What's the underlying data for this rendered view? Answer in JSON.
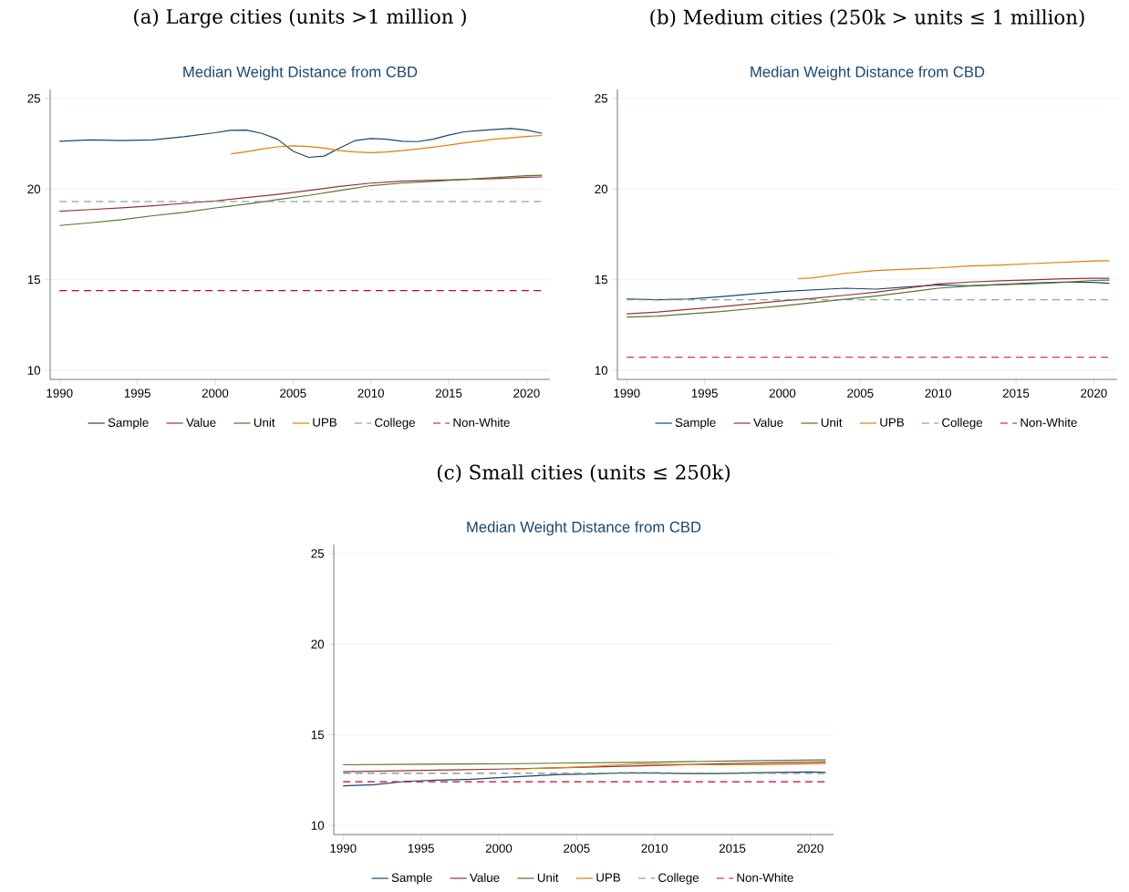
{
  "chart_data": [
    {
      "type": "line",
      "title": "(a) Large cities (units >1 million )",
      "subtitle": "Median Weight Distance from CBD",
      "xlim": [
        1989.4,
        2021.5
      ],
      "xticks": [
        1990,
        1995,
        2000,
        2005,
        2010,
        2015,
        2020
      ],
      "ylim": [
        9.5,
        25.5
      ],
      "yticks": [
        10,
        15,
        20,
        25
      ],
      "grid": "y",
      "legend": "bottom",
      "series": [
        {
          "name": "Sample",
          "color": "#1a476f",
          "x": [
            1990,
            1992,
            1994,
            1996,
            1998,
            2000,
            2001,
            2002,
            2003,
            2004,
            2005,
            2006,
            2007,
            2008,
            2009,
            2010,
            2011,
            2012,
            2013,
            2014,
            2015,
            2016,
            2017,
            2018,
            2019,
            2020,
            2021
          ],
          "values": [
            22.64,
            22.71,
            22.68,
            22.71,
            22.89,
            23.11,
            23.24,
            23.25,
            23.07,
            22.75,
            22.09,
            21.75,
            21.82,
            22.27,
            22.68,
            22.79,
            22.75,
            22.64,
            22.62,
            22.75,
            22.98,
            23.16,
            23.23,
            23.29,
            23.34,
            23.25,
            23.07
          ]
        },
        {
          "name": "Value",
          "color": "#90353b",
          "x": [
            1990,
            1992,
            1994,
            1996,
            1998,
            2000,
            2002,
            2004,
            2006,
            2008,
            2010,
            2012,
            2014,
            2016,
            2018,
            2020,
            2021
          ],
          "values": [
            18.78,
            18.87,
            18.97,
            19.08,
            19.21,
            19.35,
            19.53,
            19.71,
            19.92,
            20.15,
            20.33,
            20.44,
            20.49,
            20.53,
            20.58,
            20.65,
            20.67
          ]
        },
        {
          "name": "Unit",
          "color": "#55752f",
          "x": [
            1990,
            1992,
            1994,
            1996,
            1998,
            2000,
            2002,
            2004,
            2006,
            2008,
            2010,
            2012,
            2014,
            2016,
            2018,
            2020,
            2021
          ],
          "values": [
            17.99,
            18.14,
            18.31,
            18.53,
            18.71,
            18.96,
            19.17,
            19.42,
            19.65,
            19.92,
            20.19,
            20.33,
            20.42,
            20.53,
            20.64,
            20.74,
            20.76
          ]
        },
        {
          "name": "UPB",
          "color": "#e37e00",
          "x": [
            2001,
            2002,
            2003,
            2004,
            2005,
            2006,
            2007,
            2008,
            2009,
            2010,
            2011,
            2012,
            2013,
            2014,
            2015,
            2016,
            2017,
            2018,
            2019,
            2020,
            2021
          ],
          "values": [
            21.94,
            22.06,
            22.21,
            22.33,
            22.39,
            22.35,
            22.26,
            22.12,
            22.05,
            22.01,
            22.05,
            22.12,
            22.21,
            22.31,
            22.42,
            22.55,
            22.65,
            22.76,
            22.83,
            22.9,
            22.96
          ]
        },
        {
          "name": "College",
          "color": "#6e8e84",
          "line_style": "dashed",
          "x": [
            1990,
            2021
          ],
          "values": [
            19.31,
            19.31
          ]
        },
        {
          "name": "Non-White",
          "color": "#c10534",
          "line_style": "dashed",
          "x": [
            1990,
            2021
          ],
          "values": [
            14.4,
            14.4
          ]
        }
      ]
    },
    {
      "type": "line",
      "title": "(b) Medium cities (250k > units ≤ 1 million)",
      "subtitle": "Median Weight Distance from CBD",
      "xlim": [
        1989.4,
        2021.5
      ],
      "xticks": [
        1990,
        1995,
        2000,
        2005,
        2010,
        2015,
        2020
      ],
      "ylim": [
        9.5,
        25.5
      ],
      "yticks": [
        10,
        15,
        20,
        25
      ],
      "grid": "y",
      "legend": "bottom",
      "series": [
        {
          "name": "Sample",
          "color": "#1a476f",
          "x": [
            1990,
            1992,
            1994,
            1996,
            1998,
            2000,
            2002,
            2004,
            2006,
            2008,
            2010,
            2012,
            2014,
            2016,
            2018,
            2020,
            2021
          ],
          "values": [
            13.94,
            13.9,
            13.94,
            14.06,
            14.21,
            14.35,
            14.44,
            14.53,
            14.48,
            14.6,
            14.71,
            14.67,
            14.74,
            14.81,
            14.87,
            14.85,
            14.8
          ]
        },
        {
          "name": "Value",
          "color": "#90353b",
          "x": [
            1990,
            1992,
            1994,
            1996,
            1998,
            2000,
            2002,
            2004,
            2006,
            2008,
            2010,
            2012,
            2014,
            2016,
            2018,
            2020,
            2021
          ],
          "values": [
            13.12,
            13.22,
            13.37,
            13.51,
            13.67,
            13.83,
            13.97,
            14.14,
            14.31,
            14.53,
            14.76,
            14.87,
            14.94,
            14.99,
            15.05,
            15.08,
            15.08
          ]
        },
        {
          "name": "Unit",
          "color": "#55752f",
          "x": [
            1990,
            1992,
            1994,
            1996,
            1998,
            2000,
            2002,
            2004,
            2006,
            2008,
            2010,
            2012,
            2014,
            2016,
            2018,
            2020,
            2021
          ],
          "values": [
            12.94,
            12.99,
            13.12,
            13.24,
            13.4,
            13.56,
            13.74,
            13.92,
            14.1,
            14.31,
            14.53,
            14.65,
            14.72,
            14.78,
            14.85,
            14.96,
            14.98
          ]
        },
        {
          "name": "UPB",
          "color": "#e37e00",
          "x": [
            2001,
            2002,
            2004,
            2006,
            2008,
            2010,
            2012,
            2014,
            2016,
            2018,
            2020,
            2021
          ],
          "values": [
            15.06,
            15.1,
            15.35,
            15.51,
            15.58,
            15.65,
            15.76,
            15.81,
            15.89,
            15.96,
            16.03,
            16.05
          ]
        },
        {
          "name": "College",
          "color": "#6e8e84",
          "line_style": "dashed",
          "x": [
            1990,
            2021
          ],
          "values": [
            13.89,
            13.89
          ]
        },
        {
          "name": "Non-White",
          "color": "#c10534",
          "line_style": "dashed",
          "x": [
            1990,
            2021
          ],
          "values": [
            10.72,
            10.72
          ]
        }
      ]
    },
    {
      "type": "line",
      "title": "(c) Small cities (units ≤ 250k)",
      "subtitle": "Median Weight Distance from CBD",
      "xlim": [
        1989.4,
        2021.5
      ],
      "xticks": [
        1990,
        1995,
        2000,
        2005,
        2010,
        2015,
        2020
      ],
      "ylim": [
        9.5,
        25.5
      ],
      "yticks": [
        10,
        15,
        20,
        25
      ],
      "grid": "y",
      "legend": "bottom",
      "series": [
        {
          "name": "Sample",
          "color": "#1a476f",
          "x": [
            1990,
            1992,
            1994,
            1996,
            1998,
            2000,
            2002,
            2004,
            2006,
            2008,
            2010,
            2012,
            2014,
            2016,
            2018,
            2020,
            2021
          ],
          "values": [
            12.19,
            12.25,
            12.43,
            12.5,
            12.54,
            12.64,
            12.73,
            12.81,
            12.84,
            12.91,
            12.9,
            12.86,
            12.86,
            12.9,
            12.93,
            12.95,
            12.93
          ]
        },
        {
          "name": "Value",
          "color": "#90353b",
          "x": [
            1990,
            2000,
            2005,
            2010,
            2015,
            2021
          ],
          "values": [
            12.97,
            13.11,
            13.2,
            13.31,
            13.42,
            13.51
          ]
        },
        {
          "name": "Unit",
          "color": "#55752f",
          "x": [
            1990,
            1995,
            2000,
            2005,
            2010,
            2015,
            2021
          ],
          "values": [
            13.35,
            13.38,
            13.4,
            13.45,
            13.49,
            13.56,
            13.62
          ]
        },
        {
          "name": "UPB",
          "color": "#e37e00",
          "x": [
            2001,
            2005,
            2009,
            2013,
            2017,
            2021
          ],
          "values": [
            13.11,
            13.22,
            13.4,
            13.35,
            13.36,
            13.42
          ]
        },
        {
          "name": "College",
          "color": "#6e8e84",
          "line_style": "dashed",
          "x": [
            1990,
            2021
          ],
          "values": [
            12.88,
            12.88
          ]
        },
        {
          "name": "Non-White",
          "color": "#c10534",
          "line_style": "dashed",
          "x": [
            1990,
            2021
          ],
          "values": [
            12.41,
            12.41
          ]
        }
      ]
    }
  ]
}
